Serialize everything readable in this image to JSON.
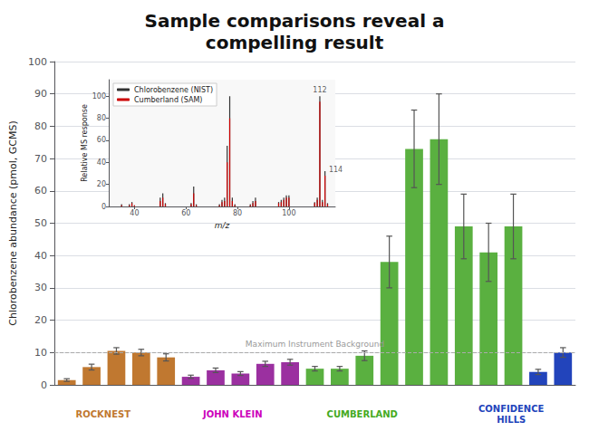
{
  "chart_data": [
    {
      "type": "bar",
      "title": "Sample comparisons reveal a\ncompelling result",
      "ylabel": "Chlorobenzene abundance (pmol, GCMS)",
      "categories": [
        null,
        null,
        null,
        null,
        null,
        null,
        null,
        null,
        null,
        null,
        null,
        null,
        null,
        null,
        null,
        null,
        null,
        null,
        null,
        null,
        null
      ],
      "values": [
        1.5,
        5.5,
        10.5,
        10.0,
        8.5,
        2.5,
        4.5,
        3.5,
        6.5,
        7.0,
        5.0,
        5.0,
        9.0,
        38.0,
        73.0,
        76.0,
        49.0,
        41.0,
        49.0,
        4.0,
        10.0
      ],
      "errors": [
        0.4,
        0.9,
        1.0,
        1.0,
        1.1,
        0.5,
        0.7,
        0.6,
        0.8,
        0.9,
        0.7,
        0.7,
        1.5,
        8.0,
        12.0,
        14.0,
        10.0,
        9.0,
        10.0,
        0.8,
        1.5
      ],
      "colors": [
        "#c07830",
        "#c07830",
        "#c07830",
        "#c07830",
        "#c07830",
        "#9b30a0",
        "#9b30a0",
        "#9b30a0",
        "#9b30a0",
        "#9b30a0",
        "#5ab040",
        "#5ab040",
        "#5ab040",
        "#5ab040",
        "#5ab040",
        "#5ab040",
        "#5ab040",
        "#5ab040",
        "#5ab040",
        "#2244bb",
        "#2244bb"
      ],
      "ylim": [
        0,
        100
      ],
      "yticks": [
        0,
        10,
        20,
        30,
        40,
        50,
        60,
        70,
        80,
        90,
        100
      ],
      "grid": true,
      "tick_labels": "y",
      "hlines": [
        {
          "y": 10,
          "label": "Maximum Instrument Background"
        }
      ],
      "annotations": [
        {
          "text": "ROCKNEST",
          "color": "#c07830"
        },
        {
          "text": "JOHN KLEIN",
          "color": "#cc00bb"
        },
        {
          "text": "CUMBERLAND",
          "color": "#44aa22"
        },
        {
          "text": "CONFIDENCE\nHILLS",
          "color": "#2244bb"
        }
      ]
    },
    {
      "type": "bar",
      "xlabel": "m/z",
      "ylabel": "Relative MS response",
      "x": [
        35,
        38,
        39,
        40,
        50,
        51,
        52,
        62,
        63,
        64,
        73,
        74,
        75,
        76,
        77,
        78,
        79,
        85,
        86,
        87,
        96,
        97,
        98,
        99,
        100,
        110,
        111,
        112,
        113,
        114,
        115
      ],
      "series": [
        {
          "name": "Chlorobenzene (NIST)",
          "color": "#333333",
          "values": [
            2,
            2,
            4,
            1,
            8,
            12,
            3,
            3,
            18,
            2,
            2,
            6,
            8,
            55,
            100,
            8,
            2,
            2,
            5,
            8,
            4,
            6,
            8,
            10,
            10,
            4,
            8,
            100,
            6,
            32,
            3
          ]
        },
        {
          "name": "Cumberland (SAM)",
          "color": "#cc0000",
          "values": [
            1,
            1,
            3,
            1,
            5,
            8,
            2,
            2,
            12,
            1,
            1,
            4,
            5,
            40,
            80,
            5,
            1,
            1,
            3,
            5,
            3,
            4,
            6,
            8,
            8,
            3,
            6,
            95,
            4,
            28,
            2
          ]
        }
      ],
      "xlim": [
        30,
        118
      ],
      "xticks": [
        40,
        60,
        80,
        100
      ],
      "ylim": [
        0,
        115
      ],
      "yticks": [
        0,
        20,
        40,
        60,
        80,
        100
      ],
      "grid": false,
      "legend": "upper left",
      "annotations": [
        {
          "text": "112",
          "x": 112,
          "y": 102
        },
        {
          "text": "114",
          "x": 115.5,
          "y": 33
        }
      ]
    }
  ]
}
